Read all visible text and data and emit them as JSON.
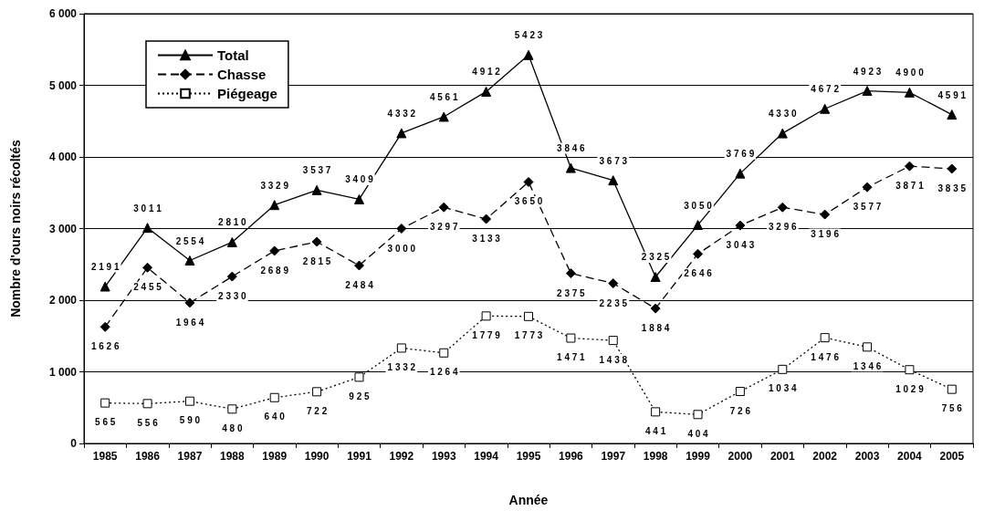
{
  "chart_data": {
    "type": "line",
    "xlabel": "Année",
    "ylabel": "Nombre d'ours noirs récoltés",
    "categories": [
      "1985",
      "1986",
      "1987",
      "1988",
      "1989",
      "1990",
      "1991",
      "1992",
      "1993",
      "1994",
      "1995",
      "1996",
      "1997",
      "1998",
      "1999",
      "2000",
      "2001",
      "2002",
      "2003",
      "2004",
      "2005"
    ],
    "series": [
      {
        "name": "Total",
        "color": "#000000",
        "marker": "triangle",
        "line_style": "solid",
        "values": [
          2191,
          3011,
          2554,
          2810,
          3329,
          3537,
          3409,
          4332,
          4561,
          4912,
          5423,
          3846,
          3673,
          2325,
          3050,
          3769,
          4330,
          4672,
          4923,
          4900,
          4591
        ]
      },
      {
        "name": "Chasse",
        "color": "#000000",
        "marker": "diamond",
        "line_style": "dashed",
        "values": [
          1626,
          2455,
          1964,
          2330,
          2689,
          2815,
          2484,
          3000,
          3297,
          3133,
          3650,
          2375,
          2235,
          1884,
          2646,
          3043,
          3296,
          3196,
          3577,
          3871,
          3835
        ]
      },
      {
        "name": "Piégeage",
        "color": "#000000",
        "marker": "square",
        "line_style": "dotted",
        "values": [
          565,
          556,
          590,
          480,
          640,
          722,
          925,
          1332,
          1264,
          1779,
          1773,
          1471,
          1438,
          441,
          404,
          726,
          1034,
          1476,
          1346,
          1029,
          756
        ]
      }
    ],
    "ylim": [
      0,
      6000
    ],
    "yticks": [
      {
        "value": 0,
        "label": "0"
      },
      {
        "value": 1000,
        "label": "1 000"
      },
      {
        "value": 2000,
        "label": "2 000"
      },
      {
        "value": 3000,
        "label": "3 000"
      },
      {
        "value": 4000,
        "label": "4 000"
      },
      {
        "value": 5000,
        "label": "5 000"
      },
      {
        "value": 6000,
        "label": "6 000"
      }
    ],
    "grid": "y",
    "legend": "top left",
    "data_labels": true
  }
}
